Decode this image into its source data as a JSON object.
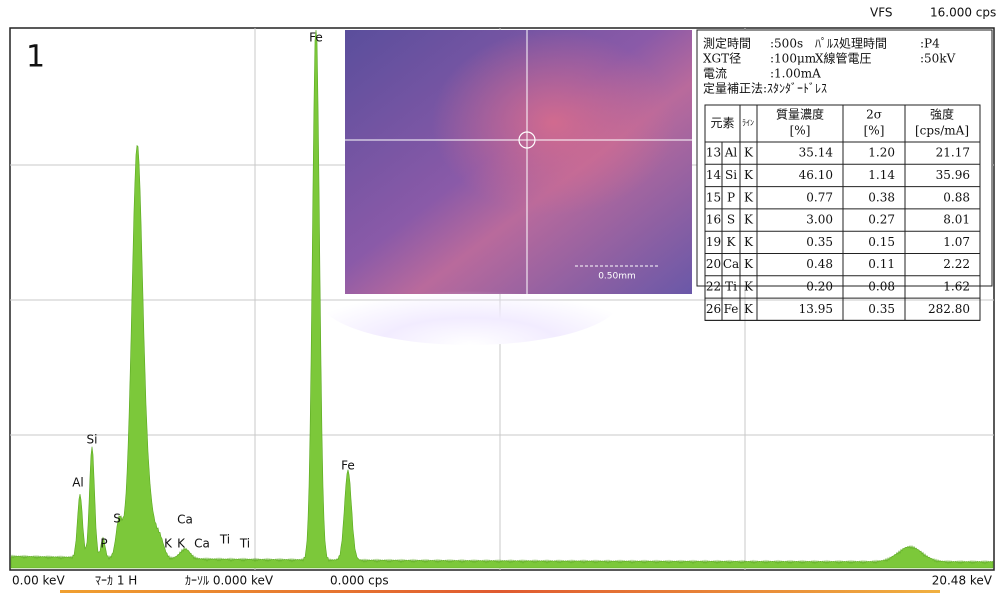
{
  "header": {
    "vfs": "VFS",
    "full_scale": "16.000 cps"
  },
  "panel_number": "1",
  "image": {
    "scale_label": "0.50mm"
  },
  "info": [
    [
      "測定時間",
      ":500s",
      "ﾊﾟﾙｽ処理時間",
      ":P4"
    ],
    [
      "XGT径",
      ":100μm",
      "X線管電圧",
      ":50kV"
    ],
    [
      "電流",
      ":1.00mA"
    ],
    [
      "定量補正法:ｽﾀﾝﾀﾞｰﾄﾞﾚｽ"
    ]
  ],
  "table": {
    "headers": [
      [
        "元素"
      ],
      [
        "ﾗｲﾝ"
      ],
      [
        "質量濃度",
        "[%]"
      ],
      [
        "2σ",
        "[%]"
      ],
      [
        "強度",
        "[cps/mA]"
      ]
    ],
    "rows": [
      [
        "13",
        "Al",
        "K",
        "35.14",
        "1.20",
        "21.17"
      ],
      [
        "14",
        "Si",
        "K",
        "46.10",
        "1.14",
        "35.96"
      ],
      [
        "15",
        "P",
        "K",
        "0.77",
        "0.38",
        "0.88"
      ],
      [
        "16",
        "S",
        "K",
        "3.00",
        "0.27",
        "8.01"
      ],
      [
        "19",
        "K",
        "K",
        "0.35",
        "0.15",
        "1.07"
      ],
      [
        "20",
        "Ca",
        "K",
        "0.48",
        "0.11",
        "2.22"
      ],
      [
        "22",
        "Ti",
        "K",
        "0.20",
        "0.08",
        "1.62"
      ],
      [
        "26",
        "Fe",
        "K",
        "13.95",
        "0.35",
        "282.80"
      ]
    ]
  },
  "peak_labels": [
    "Fe",
    "Si",
    "Al",
    "S",
    "P",
    "Ca",
    "K",
    "K",
    "Ca",
    "Ti",
    "Ti",
    "Fe"
  ],
  "footer": {
    "start": "0.00 keV",
    "marker": "ﾏｰｶ 1 H",
    "cursor": "ｶｰｿﾙ 0.000 keV",
    "cps": "0.000 cps",
    "end": "20.48 keV"
  }
}
